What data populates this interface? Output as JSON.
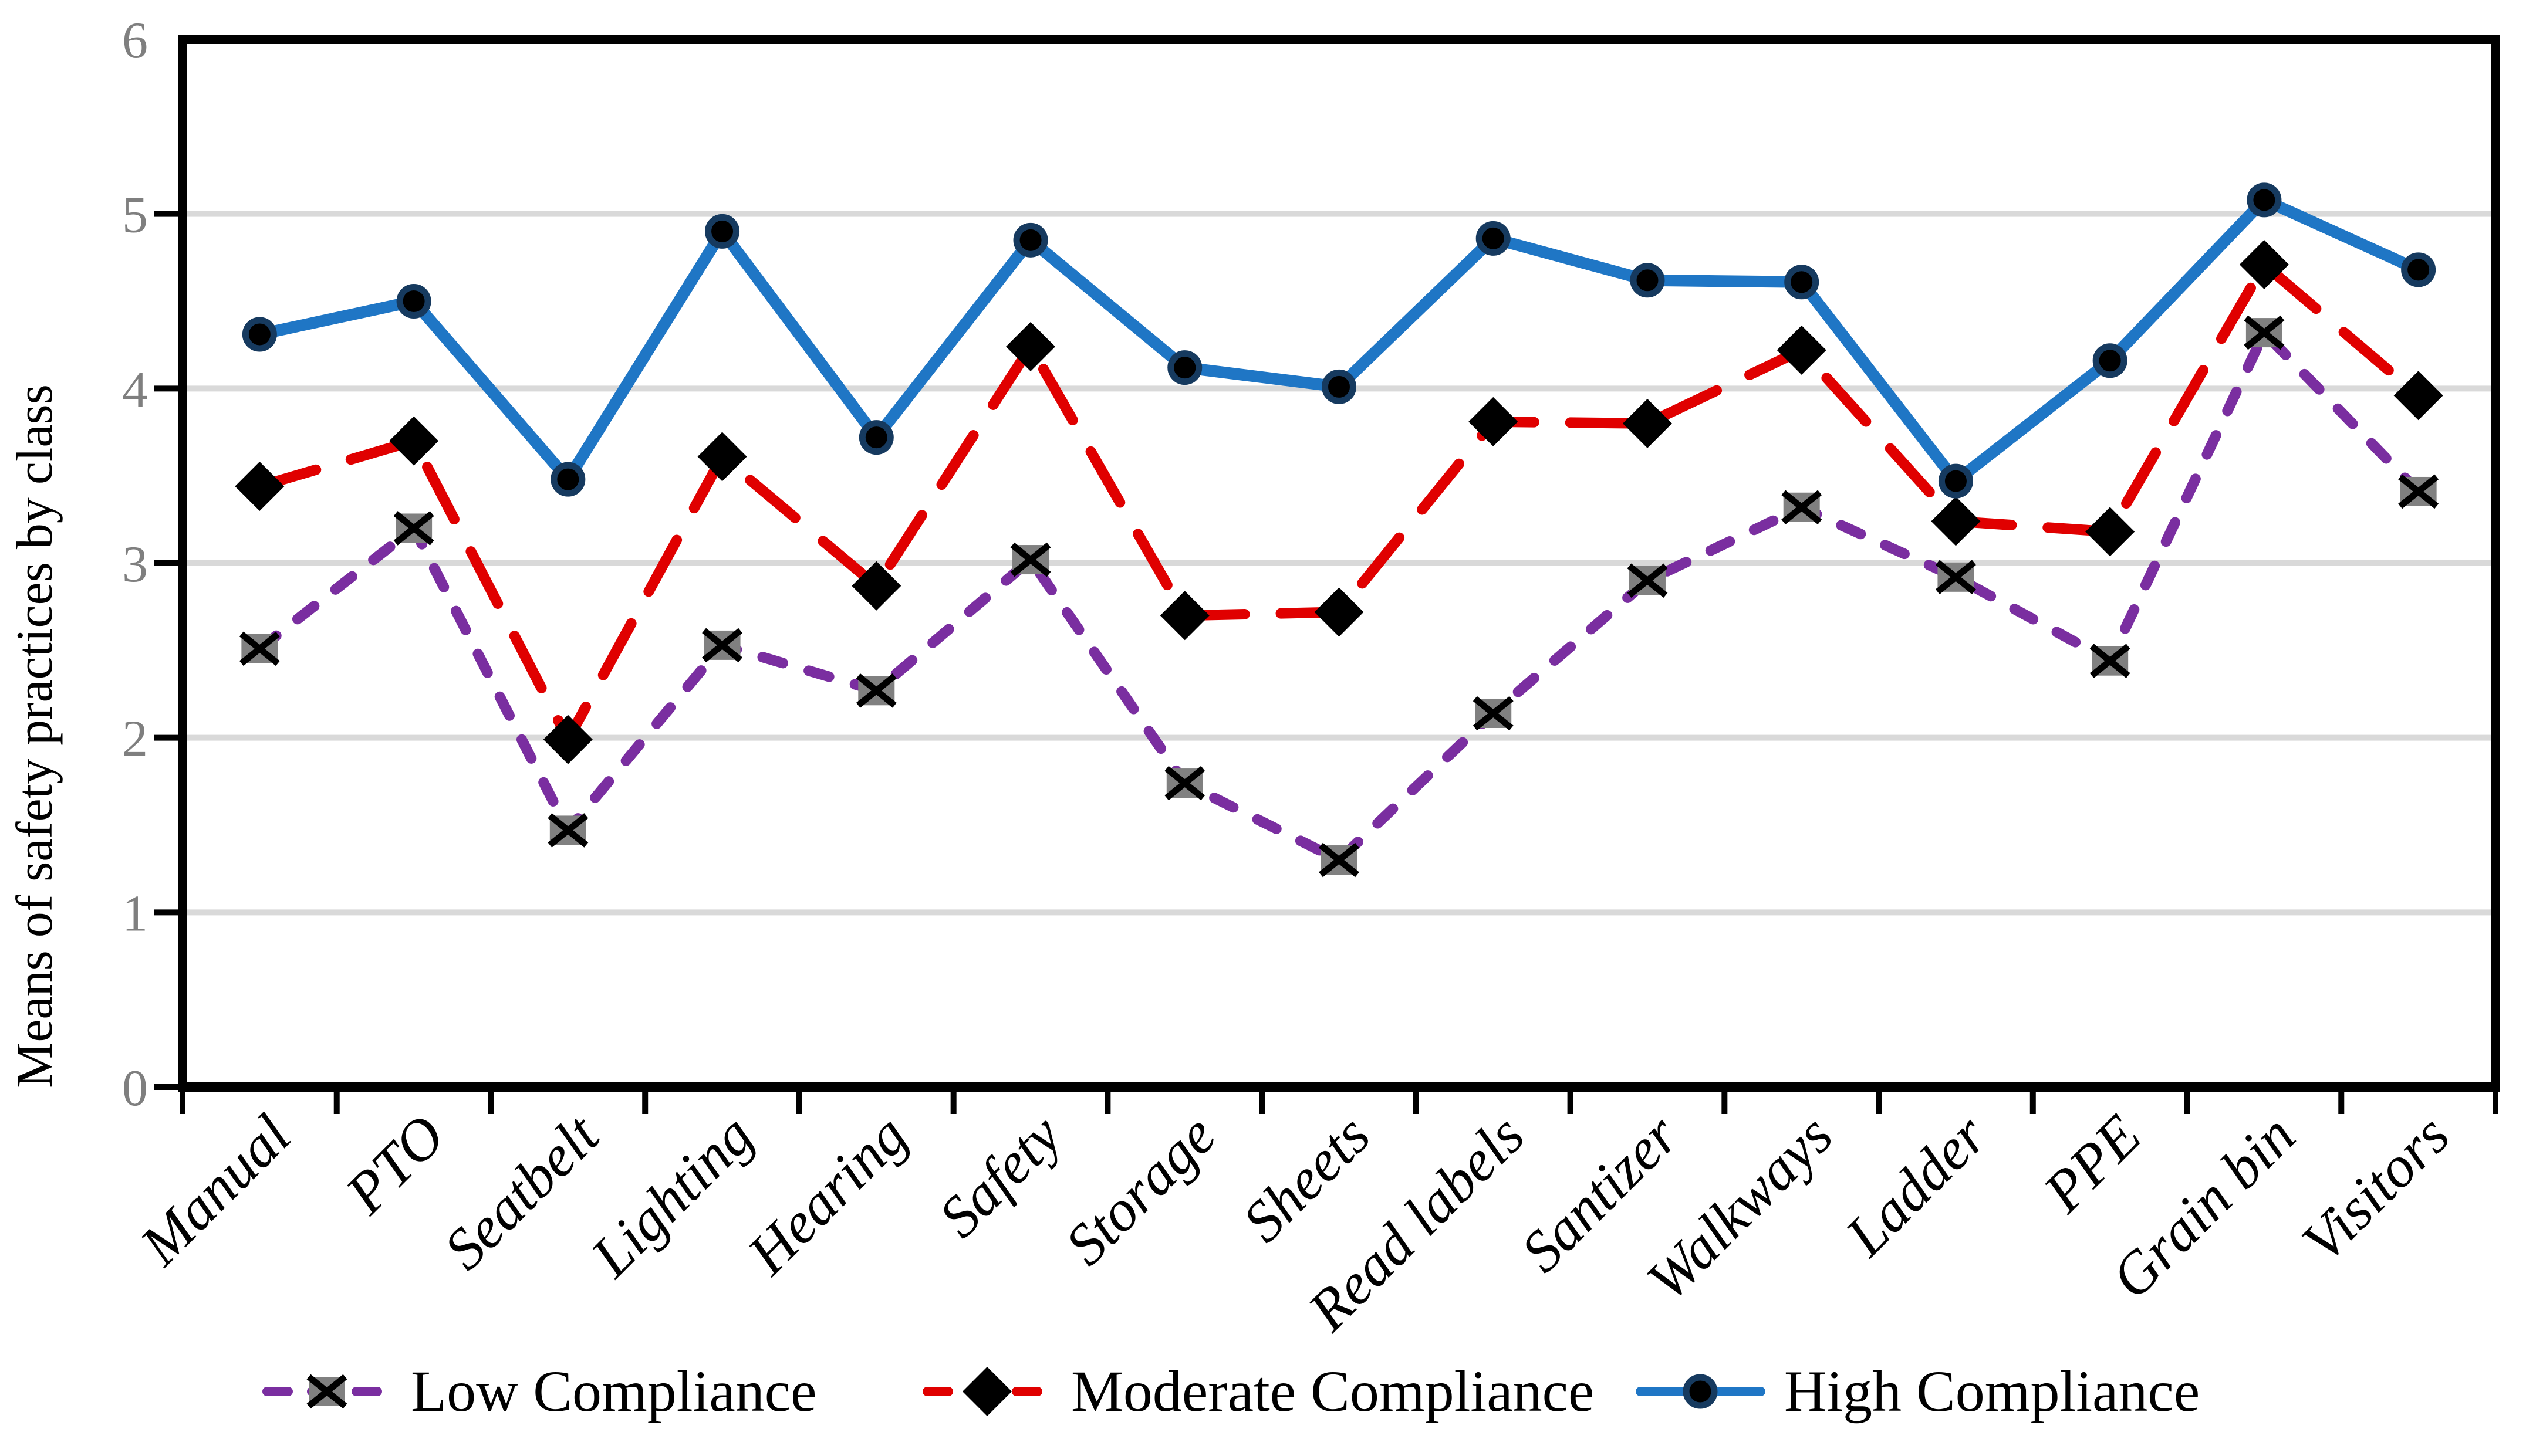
{
  "chart_data": {
    "type": "line",
    "title": "",
    "xlabel": "",
    "ylabel": "Means of safety practices by class",
    "ylim": [
      0,
      6
    ],
    "yticks": [
      0,
      1,
      2,
      3,
      4,
      5,
      6
    ],
    "grid": "horizontal",
    "gridline_color": "#D9D9D9",
    "axis_color": "#000000",
    "tick_label_color": "#7F7F7F",
    "legend_position": "bottom",
    "categories": [
      "Manual",
      "PTO",
      "Seatbelt",
      "Lighting",
      "Hearing",
      "Safety",
      "Storage",
      "Sheets",
      "Read labels",
      "Santizer",
      "Walkways",
      "Ladder",
      "PPE",
      "Grain bin",
      "Visitors"
    ],
    "series": [
      {
        "name": "Low Compliance",
        "color": "#7A2EA0",
        "line_style": "dashed",
        "marker": "x-square",
        "marker_fill": "#808080",
        "marker_stroke": "#000000",
        "values": [
          2.51,
          3.2,
          1.47,
          2.53,
          2.27,
          3.02,
          1.74,
          1.3,
          2.14,
          2.9,
          3.32,
          2.92,
          2.44,
          4.32,
          3.41
        ]
      },
      {
        "name": "Moderate Compliance",
        "color": "#E00000",
        "line_style": "long-dash",
        "marker": "diamond",
        "marker_fill": "#000000",
        "values": [
          3.44,
          3.7,
          1.99,
          3.61,
          2.87,
          4.24,
          2.7,
          2.72,
          3.81,
          3.8,
          4.22,
          3.24,
          3.18,
          4.71,
          3.96
        ]
      },
      {
        "name": "High Compliance",
        "color": "#1F76C5",
        "line_style": "solid",
        "marker": "circle",
        "marker_fill": "#000000",
        "marker_ring": "#163A5F",
        "values": [
          4.31,
          4.5,
          3.48,
          4.9,
          3.72,
          4.85,
          4.12,
          4.01,
          4.86,
          4.62,
          4.61,
          3.47,
          4.16,
          5.08,
          4.68
        ]
      }
    ]
  }
}
